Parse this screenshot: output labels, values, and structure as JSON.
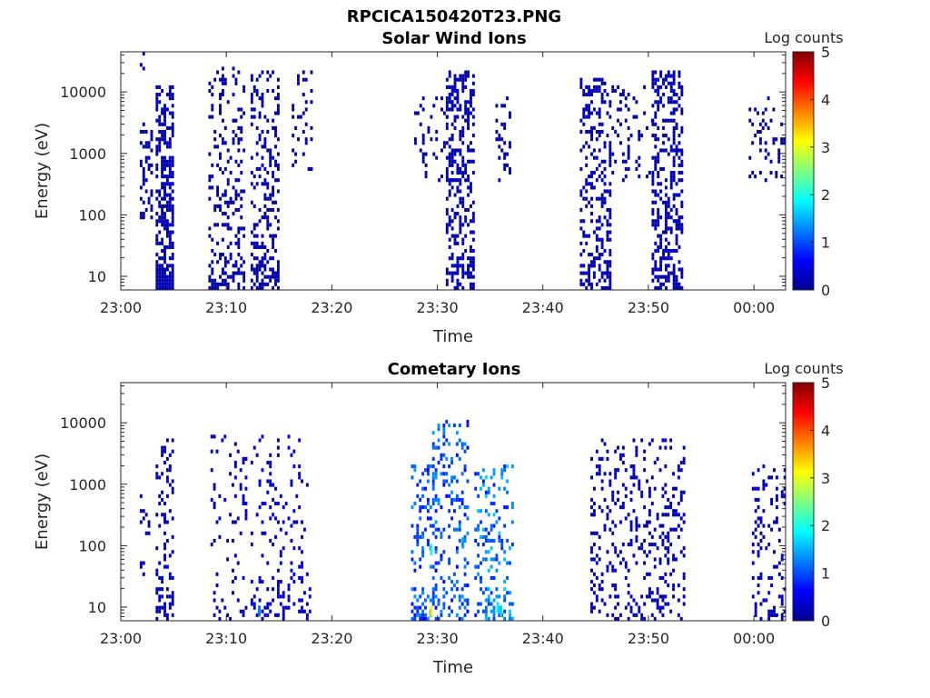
{
  "figure_title": "RPCICA150420T23.PNG",
  "colorbar": {
    "label": "Log counts",
    "ticks": [
      0,
      1,
      2,
      3,
      4,
      5
    ],
    "colormap": "jet",
    "range": [
      0,
      5
    ]
  },
  "colors": {
    "axes": "#262626",
    "background": "#ffffff"
  },
  "chart_data": [
    {
      "type": "heatmap",
      "title": "Solar Wind Ions",
      "xlabel": "Time",
      "ylabel": "Energy (eV)",
      "xticks": [
        "23:00",
        "23:10",
        "23:20",
        "23:30",
        "23:40",
        "23:50",
        "00:00"
      ],
      "xlim_minutes": [
        0,
        63
      ],
      "ylim": [
        6,
        45000
      ],
      "yscale": "log",
      "yticks": [
        10,
        100,
        1000,
        10000
      ],
      "ytick_labels": [
        "10",
        "100",
        "1000",
        "10000"
      ],
      "grid": false,
      "colorbar_label": "Log counts",
      "bursts": [
        {
          "t_start": 1.8,
          "t_end": 2.3,
          "e_min": 20000,
          "e_max": 40000,
          "density": 0.5,
          "level": 0.2
        },
        {
          "t_start": 1.8,
          "t_end": 3.0,
          "e_min": 80,
          "e_max": 3000,
          "density": 0.35,
          "level": 0.2
        },
        {
          "t_start": 3.3,
          "t_end": 5.0,
          "e_min": 6,
          "e_max": 12000,
          "density": 0.55,
          "level": 0.25
        },
        {
          "t_start": 8.3,
          "t_end": 11.7,
          "e_min": 6,
          "e_max": 25000,
          "density": 0.22,
          "level": 0.2
        },
        {
          "t_start": 12.3,
          "t_end": 15.0,
          "e_min": 6,
          "e_max": 20000,
          "density": 0.3,
          "level": 0.2
        },
        {
          "t_start": 16.2,
          "t_end": 18.0,
          "e_min": 500,
          "e_max": 20000,
          "density": 0.15,
          "level": 0.2
        },
        {
          "t_start": 27.8,
          "t_end": 31.5,
          "e_min": 300,
          "e_max": 10000,
          "density": 0.13,
          "level": 0.2
        },
        {
          "t_start": 30.8,
          "t_end": 33.5,
          "e_min": 6,
          "e_max": 20000,
          "density": 0.35,
          "level": 0.25
        },
        {
          "t_start": 35.5,
          "t_end": 37.0,
          "e_min": 300,
          "e_max": 8000,
          "density": 0.2,
          "level": 0.2
        },
        {
          "t_start": 43.5,
          "t_end": 46.5,
          "e_min": 6,
          "e_max": 15000,
          "density": 0.32,
          "level": 0.25
        },
        {
          "t_start": 46.5,
          "t_end": 50.5,
          "e_min": 300,
          "e_max": 12000,
          "density": 0.14,
          "level": 0.2
        },
        {
          "t_start": 50.3,
          "t_end": 53.2,
          "e_min": 6,
          "e_max": 20000,
          "density": 0.35,
          "level": 0.25
        },
        {
          "t_start": 59.5,
          "t_end": 63.0,
          "e_min": 300,
          "e_max": 8000,
          "density": 0.15,
          "level": 0.2
        }
      ]
    },
    {
      "type": "heatmap",
      "title": "Cometary Ions",
      "xlabel": "Time",
      "ylabel": "Energy (eV)",
      "xticks": [
        "23:00",
        "23:10",
        "23:20",
        "23:30",
        "23:40",
        "23:50",
        "00:00"
      ],
      "xlim_minutes": [
        0,
        63
      ],
      "ylim": [
        6,
        45000
      ],
      "yscale": "log",
      "yticks": [
        10,
        100,
        1000,
        10000
      ],
      "ytick_labels": [
        "10",
        "100",
        "1000",
        "10000"
      ],
      "grid": false,
      "colorbar_label": "Log counts",
      "bursts": [
        {
          "t_start": 1.8,
          "t_end": 2.6,
          "e_min": 30,
          "e_max": 600,
          "density": 0.2,
          "level": 0.2
        },
        {
          "t_start": 3.3,
          "t_end": 5.0,
          "e_min": 6,
          "e_max": 5000,
          "density": 0.28,
          "level": 0.3
        },
        {
          "t_start": 8.5,
          "t_end": 11.8,
          "e_min": 6,
          "e_max": 6000,
          "density": 0.08,
          "level": 0.3
        },
        {
          "t_start": 12.3,
          "t_end": 18.0,
          "e_min": 6,
          "e_max": 6000,
          "density": 0.12,
          "level": 0.4
        },
        {
          "t_start": 27.5,
          "t_end": 29.8,
          "e_min": 6,
          "e_max": 2000,
          "density": 0.22,
          "level": 1.0
        },
        {
          "t_start": 29.5,
          "t_end": 33.0,
          "e_min": 6,
          "e_max": 10000,
          "density": 0.2,
          "level": 1.0
        },
        {
          "t_start": 33.5,
          "t_end": 37.2,
          "e_min": 6,
          "e_max": 2000,
          "density": 0.22,
          "level": 1.2
        },
        {
          "t_start": 44.5,
          "t_end": 49.0,
          "e_min": 6,
          "e_max": 5000,
          "density": 0.18,
          "level": 0.3
        },
        {
          "t_start": 49.0,
          "t_end": 53.5,
          "e_min": 6,
          "e_max": 5000,
          "density": 0.16,
          "level": 0.3
        },
        {
          "t_start": 59.8,
          "t_end": 63.0,
          "e_min": 6,
          "e_max": 2000,
          "density": 0.18,
          "level": 0.3
        }
      ],
      "hotspots": [
        {
          "t": 29.3,
          "e": 7,
          "level": 3.0
        },
        {
          "t": 29.3,
          "e": 70,
          "level": 2.0
        },
        {
          "t": 35.6,
          "e": 8,
          "level": 1.8
        },
        {
          "t": 35.9,
          "e": 7,
          "level": 1.7
        },
        {
          "t": 32.3,
          "e": 90,
          "level": 1.4
        },
        {
          "t": 13.0,
          "e": 7,
          "level": 1.2
        }
      ]
    }
  ]
}
